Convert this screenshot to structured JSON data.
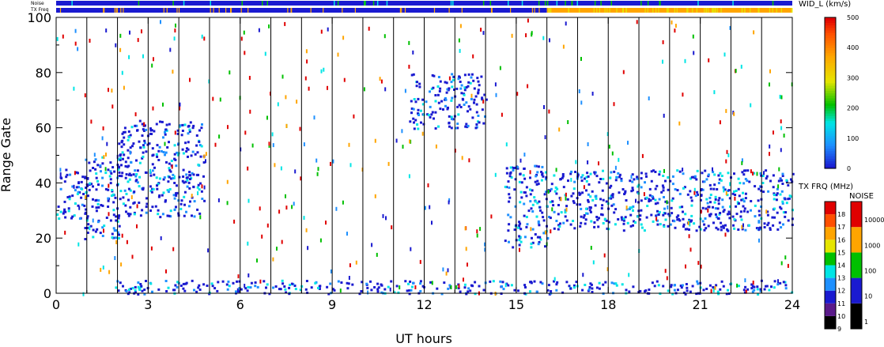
{
  "chart_data": {
    "type": "heatmap",
    "title": "",
    "xlabel": "UT hours",
    "ylabel": "Range Gate",
    "xlim": [
      0,
      24
    ],
    "ylim": [
      0,
      100
    ],
    "x_ticks": [
      "0",
      "3",
      "6",
      "9",
      "12",
      "15",
      "18",
      "21",
      "24"
    ],
    "y_ticks": [
      "0",
      "20",
      "40",
      "60",
      "80",
      "100"
    ],
    "scan_boundaries_ut": [
      1,
      2,
      3,
      4,
      5,
      6,
      7,
      8,
      9,
      10,
      11,
      12,
      13,
      14,
      15,
      16,
      17,
      18,
      19,
      20,
      21,
      22,
      23
    ],
    "top_strips": {
      "noise_label": "Noise",
      "txfreq_label": "TX Freq",
      "noise_color": "#1a1ad0",
      "txfreq_segments": [
        {
          "start": 0,
          "end": 16,
          "color": "#1a1ad0"
        },
        {
          "start": 16,
          "end": 24,
          "color": "#ffa500"
        }
      ]
    },
    "echo_regions": [
      {
        "t0": 0.0,
        "t1": 1.0,
        "g0": 27,
        "g1": 46,
        "color": "#1a1ad0"
      },
      {
        "t0": 0.9,
        "t1": 2.1,
        "g0": 20,
        "g1": 50,
        "color": "#1a1ad0"
      },
      {
        "t0": 2.0,
        "t1": 4.8,
        "g0": 28,
        "g1": 63,
        "color": "#1a1ad0"
      },
      {
        "t0": 11.5,
        "t1": 14.0,
        "g0": 60,
        "g1": 80,
        "color": "#1a1ad0"
      },
      {
        "t0": 14.6,
        "t1": 16.0,
        "g0": 17,
        "g1": 47,
        "color": "#1a1ad0"
      },
      {
        "t0": 16.0,
        "t1": 24.0,
        "g0": 23,
        "g1": 45,
        "color": "#1a1ad0"
      },
      {
        "t0": 1.9,
        "t1": 24.0,
        "g0": 0,
        "g1": 5,
        "color": "#1a1ad0"
      }
    ],
    "colorbars": [
      {
        "title": "WID_L (km/s)",
        "ticks": [
          "0",
          "100",
          "200",
          "300",
          "400",
          "500"
        ],
        "min": 0,
        "max": 500
      },
      {
        "title": "TX FRQ (MHz)",
        "ticks": [
          "9",
          "10",
          "11",
          "12",
          "13",
          "14",
          "15",
          "16",
          "17",
          "18"
        ],
        "colors": [
          "#000000",
          "#5a1a8a",
          "#1a1ad0",
          "#1e90ff",
          "#00e5e5",
          "#00c000",
          "#e5e500",
          "#ffa500",
          "#ff5000",
          "#e00000"
        ]
      },
      {
        "title": "NOISE",
        "ticks": [
          "1",
          "10",
          "100",
          "1000",
          "10000"
        ],
        "colors": [
          "#000000",
          "#1a1ad0",
          "#00c000",
          "#ffa500",
          "#e00000"
        ]
      }
    ],
    "grid": false
  }
}
